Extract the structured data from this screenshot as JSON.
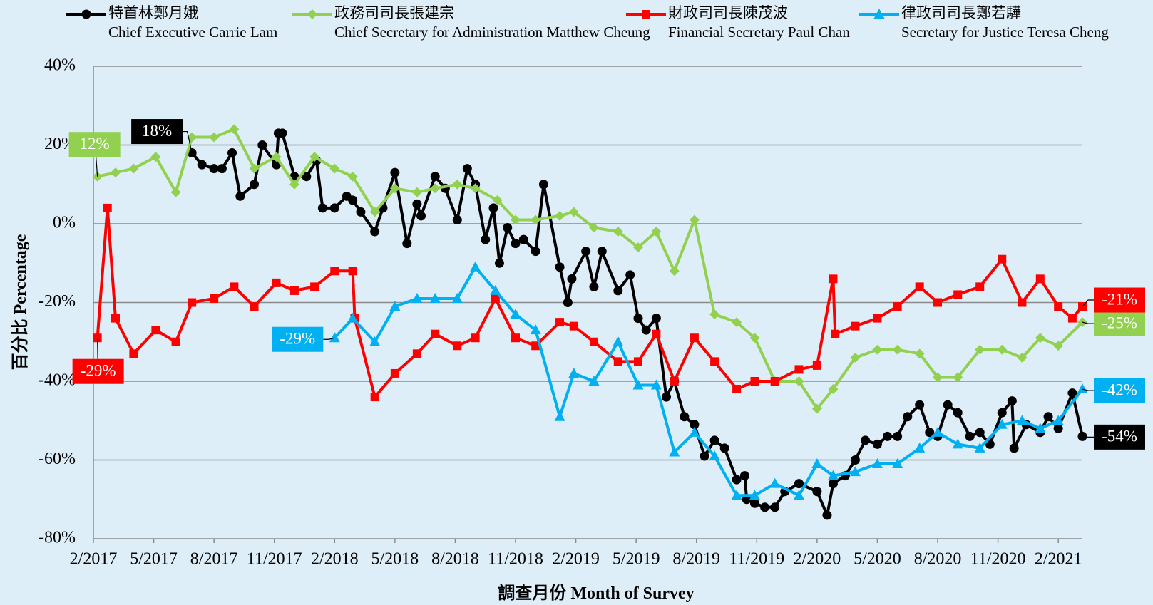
{
  "chart_data": {
    "type": "line",
    "x_label": {
      "zh": "調查月份",
      "en": "Month of Survey"
    },
    "y_label": {
      "zh": "百分比",
      "en": "Percentage"
    },
    "xlim": [
      0,
      49.2
    ],
    "xticks": [
      {
        "value": 0,
        "label": "2/2017"
      },
      {
        "value": 3,
        "label": "5/2017"
      },
      {
        "value": 6,
        "label": "8/2017"
      },
      {
        "value": 9,
        "label": "11/2017"
      },
      {
        "value": 12,
        "label": "2/2018"
      },
      {
        "value": 15,
        "label": "5/2018"
      },
      {
        "value": 18,
        "label": "8/2018"
      },
      {
        "value": 21,
        "label": "11/2018"
      },
      {
        "value": 24,
        "label": "2/2019"
      },
      {
        "value": 27,
        "label": "5/2019"
      },
      {
        "value": 30,
        "label": "8/2019"
      },
      {
        "value": 33,
        "label": "11/2019"
      },
      {
        "value": 36,
        "label": "2/2020"
      },
      {
        "value": 39,
        "label": "5/2020"
      },
      {
        "value": 42,
        "label": "8/2020"
      },
      {
        "value": 45,
        "label": "11/2020"
      },
      {
        "value": 48,
        "label": "2/2021"
      }
    ],
    "ylim": [
      -80,
      40
    ],
    "yticks": [
      {
        "value": 40,
        "label": "40%"
      },
      {
        "value": 20,
        "label": "20%"
      },
      {
        "value": 0,
        "label": "0%"
      },
      {
        "value": -20,
        "label": "-20%"
      },
      {
        "value": -40,
        "label": "-40%"
      },
      {
        "value": -60,
        "label": "-60%"
      },
      {
        "value": -80,
        "label": "-80%"
      }
    ],
    "grid": true,
    "legend": "top",
    "series": [
      {
        "name": "特首林鄭月娥",
        "name_en": "Chief Executive Carrie Lam",
        "color": "#000000",
        "marker": "circle",
        "start_label": "18%",
        "end_label": "-54%",
        "x": [
          4.9,
          5.4,
          6.0,
          6.4,
          6.9,
          7.3,
          8.0,
          8.4,
          9.1,
          9.2,
          9.4,
          10.0,
          10.6,
          11.1,
          11.4,
          12.0,
          12.6,
          12.9,
          13.3,
          14.0,
          14.4,
          15.0,
          15.6,
          16.1,
          16.3,
          17.0,
          17.5,
          18.1,
          18.6,
          19.0,
          19.5,
          19.9,
          20.2,
          20.6,
          21.0,
          21.4,
          22.0,
          22.4,
          23.2,
          23.6,
          23.8,
          24.5,
          24.9,
          25.3,
          26.1,
          26.7,
          27.1,
          27.5,
          28.0,
          28.5,
          28.9,
          29.4,
          29.9,
          30.4,
          30.9,
          31.4,
          32.0,
          32.4,
          32.5,
          32.9,
          33.4,
          33.9,
          34.4,
          35.1,
          36.0,
          36.5,
          36.8,
          37.4,
          37.9,
          38.4,
          39.0,
          39.5,
          40.0,
          40.5,
          41.1,
          41.6,
          42.0,
          42.5,
          43.0,
          43.6,
          44.1,
          44.6,
          45.2,
          45.7,
          45.8,
          46.4,
          47.1,
          47.5,
          48.0,
          48.7,
          49.2
        ],
        "values": [
          18,
          15,
          14,
          14,
          18,
          7,
          10,
          20,
          15,
          23,
          23,
          12,
          12,
          16,
          4,
          4,
          7,
          6,
          3,
          -2,
          4,
          13,
          -5,
          5,
          2,
          12,
          9,
          1,
          14,
          10,
          -4,
          4,
          -10,
          -1,
          -5,
          -4,
          -7,
          10,
          -11,
          -20,
          -14,
          -7,
          -16,
          -7,
          -17,
          -13,
          -24,
          -27,
          -24,
          -44,
          -40,
          -49,
          -51,
          -59,
          -55,
          -57,
          -65,
          -64,
          -70,
          -71,
          -72,
          -72,
          -68,
          -66,
          -68,
          -74,
          -66,
          -64,
          -60,
          -55,
          -56,
          -54,
          -54,
          -49,
          -46,
          -53,
          -54,
          -46,
          -48,
          -54,
          -53,
          -56,
          -48,
          -45,
          -57,
          -51,
          -53,
          -49,
          -52,
          -43,
          -54
        ]
      },
      {
        "name": "政務司司長張建宗",
        "name_en": "Chief Secretary for Administration Matthew Cheung",
        "color": "#92d050",
        "marker": "diamond",
        "start_label": "12%",
        "end_label": "-25%",
        "x": [
          0.2,
          1.1,
          2.0,
          3.1,
          4.1,
          4.9,
          6.0,
          7.0,
          8.0,
          9.1,
          10.0,
          11.0,
          12.0,
          12.9,
          14.0,
          15.0,
          16.1,
          17.0,
          18.1,
          19.0,
          20.1,
          21.0,
          22.0,
          23.2,
          23.9,
          24.9,
          26.1,
          27.1,
          28.0,
          28.9,
          29.9,
          30.9,
          32.0,
          32.9,
          33.9,
          35.1,
          36.0,
          36.8,
          37.9,
          39.0,
          40.0,
          41.1,
          42.0,
          43.0,
          44.1,
          45.2,
          46.2,
          47.1,
          48.0,
          49.2
        ],
        "values": [
          12,
          13,
          14,
          17,
          8,
          22,
          22,
          24,
          14,
          17,
          10,
          17,
          14,
          12,
          3,
          9,
          8,
          9,
          10,
          9,
          6,
          1,
          1,
          2,
          3,
          -1,
          -2,
          -6,
          -2,
          -12,
          1,
          -23,
          -25,
          -29,
          -40,
          -40,
          -47,
          -42,
          -34,
          -32,
          -32,
          -33,
          -39,
          -39,
          -32,
          -32,
          -34,
          -29,
          -31,
          -25
        ]
      },
      {
        "name": "財政司司長陳茂波",
        "name_en": "Financial Secretary Paul Chan",
        "color": "#ff0000",
        "marker": "square",
        "start_label": "-29%",
        "end_label": "-21%",
        "x": [
          0.2,
          0.7,
          1.1,
          2.0,
          3.1,
          4.1,
          4.9,
          6.0,
          7.0,
          8.0,
          9.1,
          10.0,
          11.0,
          12.0,
          12.9,
          13.0,
          14.0,
          15.0,
          16.1,
          17.0,
          18.1,
          19.0,
          20.0,
          21.0,
          22.0,
          23.2,
          23.9,
          24.9,
          26.1,
          27.1,
          28.0,
          28.9,
          29.9,
          30.9,
          32.0,
          32.9,
          33.9,
          35.1,
          36.0,
          36.8,
          36.9,
          37.9,
          39.0,
          40.0,
          41.1,
          42.0,
          43.0,
          44.1,
          45.2,
          46.2,
          47.1,
          48.0,
          48.7,
          49.2
        ],
        "values": [
          -29,
          4,
          -24,
          -33,
          -27,
          -30,
          -20,
          -19,
          -16,
          -21,
          -15,
          -17,
          -16,
          -12,
          -12,
          -24,
          -44,
          -38,
          -33,
          -28,
          -31,
          -29,
          -19,
          -29,
          -31,
          -25,
          -26,
          -30,
          -35,
          -35,
          -28,
          -40,
          -29,
          -35,
          -42,
          -40,
          -40,
          -37,
          -36,
          -14,
          -28,
          -26,
          -24,
          -21,
          -16,
          -20,
          -18,
          -16,
          -9,
          -20,
          -14,
          -21,
          -24,
          -21
        ]
      },
      {
        "name": "律政司司長鄭若驊",
        "name_en": "Secretary for Justice Teresa Cheng",
        "color": "#00b0f0",
        "marker": "triangle",
        "start_label": "-29%",
        "end_label": "-42%",
        "x": [
          12.0,
          12.9,
          14.0,
          15.0,
          16.1,
          17.0,
          18.1,
          19.0,
          20.0,
          21.0,
          22.0,
          23.2,
          23.9,
          24.9,
          26.1,
          27.1,
          28.0,
          28.9,
          29.9,
          30.9,
          32.0,
          32.9,
          33.9,
          35.1,
          36.0,
          36.8,
          37.9,
          39.0,
          40.0,
          41.1,
          42.0,
          43.0,
          44.1,
          45.2,
          46.2,
          47.1,
          48.0,
          49.2
        ],
        "values": [
          -29,
          -24,
          -30,
          -21,
          -19,
          -19,
          -19,
          -11,
          -17,
          -23,
          -27,
          -49,
          -38,
          -40,
          -30,
          -41,
          -41,
          -58,
          -53,
          -59,
          -69,
          -69,
          -66,
          -69,
          -61,
          -64,
          -63,
          -61,
          -61,
          -57,
          -53,
          -56,
          -57,
          -51,
          -50,
          -52,
          -50,
          -42
        ]
      }
    ]
  }
}
